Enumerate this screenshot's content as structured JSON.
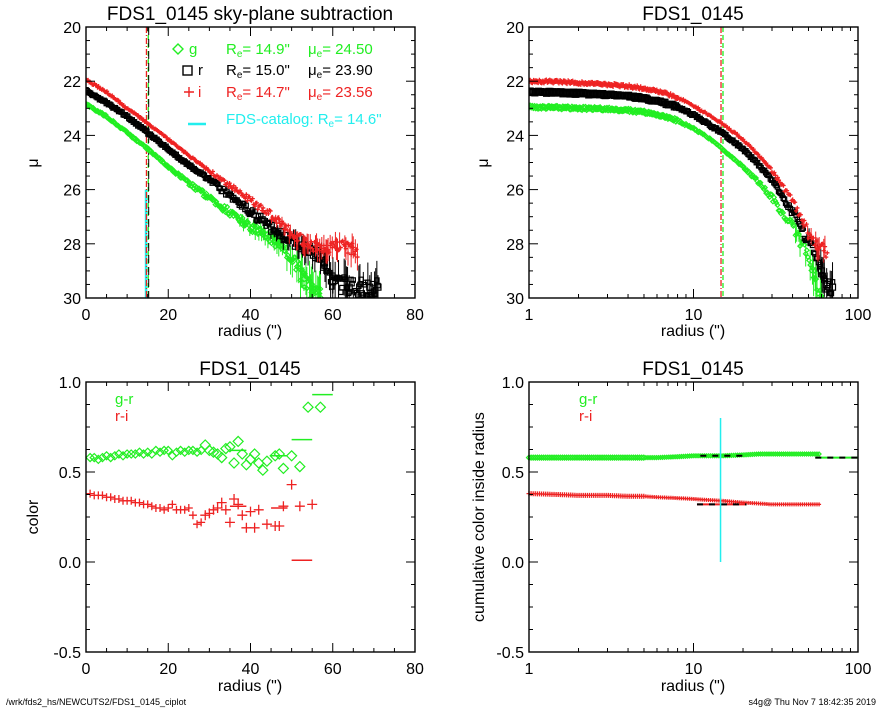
{
  "footer": {
    "path": "/wrk/fds2_hs/NEWCUTS2/FDS1_0145_ciplot",
    "stamp": "s4g@  Thu Nov  7 18:42:35 2019"
  },
  "colors": {
    "g": "#22ee22",
    "r": "#000000",
    "i": "#ee2222",
    "catalog": "#22eeee"
  },
  "chart_data": [
    {
      "id": "profile-linear",
      "type": "scatter",
      "title": "FDS1_0145 sky-plane subtraction",
      "xlabel": "radius (\")",
      "ylabel": "μ",
      "xscale": "linear",
      "xlim": [
        0,
        80
      ],
      "ylim": [
        30,
        20
      ],
      "xticks": [
        0,
        20,
        40,
        60,
        80
      ],
      "xtick_labels": [
        "0",
        "20",
        "40",
        "60",
        "80"
      ],
      "yticks": [
        20,
        22,
        24,
        26,
        28,
        30
      ],
      "ytick_labels": [
        "20",
        "22",
        "24",
        "26",
        "28",
        "30"
      ],
      "legend": [
        {
          "band": "g",
          "marker": "diamond",
          "re_label": "R",
          "re_sub": "e",
          "re_value": "=  14.9\"",
          "mu_label": "μ",
          "mu_sub": "e",
          "mu_value": "= 24.50"
        },
        {
          "band": "r",
          "marker": "square",
          "re_label": "R",
          "re_sub": "e",
          "re_value": "=  15.0\"",
          "mu_label": "μ",
          "mu_sub": "e",
          "mu_value": "= 23.90"
        },
        {
          "band": "i",
          "marker": "plus",
          "re_label": "R",
          "re_sub": "e",
          "re_value": "=  14.7\"",
          "mu_label": "μ",
          "mu_sub": "e",
          "mu_value": "= 23.56"
        }
      ],
      "catalog_legend": {
        "text": "FDS-catalog: R",
        "sub": "e",
        "value": "=  14.6\""
      },
      "re_lines": {
        "g": 14.9,
        "r": 15.0,
        "i": 14.7,
        "catalog": 14.6
      },
      "series": [
        {
          "name": "g",
          "marker": "diamond",
          "x": [
            0,
            5,
            10,
            15,
            20,
            25,
            30,
            35,
            40,
            45,
            50,
            53,
            55,
            57
          ],
          "y": [
            22.85,
            23.3,
            23.9,
            24.5,
            25.15,
            25.75,
            26.3,
            26.85,
            27.35,
            27.8,
            28.5,
            29.3,
            29.8,
            30.0
          ]
        },
        {
          "name": "r",
          "marker": "square",
          "x": [
            0,
            5,
            10,
            15,
            20,
            25,
            30,
            35,
            40,
            45,
            50,
            55,
            58,
            60,
            64,
            69,
            71
          ],
          "y": [
            22.35,
            22.8,
            23.3,
            23.9,
            24.5,
            25.1,
            25.65,
            26.2,
            26.8,
            27.4,
            27.9,
            28.3,
            28.7,
            29.4,
            29.6,
            29.6,
            29.6
          ]
        },
        {
          "name": "i",
          "marker": "plus",
          "x": [
            0,
            5,
            10,
            15,
            20,
            25,
            30,
            35,
            40,
            45,
            50,
            55,
            58,
            62,
            66
          ],
          "y": [
            21.95,
            22.4,
            23.0,
            23.56,
            24.15,
            24.75,
            25.3,
            25.85,
            26.4,
            26.95,
            27.6,
            28.1,
            28.2,
            28.0,
            28.3
          ]
        }
      ]
    },
    {
      "id": "profile-log",
      "type": "scatter",
      "title": "FDS1_0145",
      "xlabel": "radius (\")",
      "ylabel": "μ",
      "xscale": "log",
      "xlim": [
        1,
        100
      ],
      "ylim": [
        30,
        20
      ],
      "xticks": [
        1,
        10,
        100
      ],
      "xtick_labels": [
        "1",
        "10",
        "100"
      ],
      "yticks": [
        20,
        22,
        24,
        26,
        28,
        30
      ],
      "ytick_labels": [
        "20",
        "22",
        "24",
        "26",
        "28",
        "30"
      ],
      "re_lines": {
        "i": 14.7,
        "g": 14.9
      },
      "series": [
        {
          "name": "g",
          "marker": "diamond",
          "x": [
            1,
            1.5,
            2,
            3,
            4,
            5,
            6,
            8,
            10,
            12,
            15,
            20,
            25,
            30,
            40,
            50,
            55,
            60
          ],
          "y": [
            22.95,
            22.97,
            23.0,
            23.03,
            23.08,
            23.14,
            23.24,
            23.45,
            23.75,
            24.05,
            24.5,
            25.15,
            25.75,
            26.3,
            27.35,
            28.5,
            29.3,
            30.0
          ]
        },
        {
          "name": "r",
          "marker": "square",
          "x": [
            1,
            1.5,
            2,
            3,
            4,
            5,
            6,
            8,
            10,
            12,
            15,
            20,
            25,
            30,
            40,
            50,
            55,
            60,
            65,
            70
          ],
          "y": [
            22.4,
            22.42,
            22.45,
            22.5,
            22.55,
            22.63,
            22.73,
            22.95,
            23.25,
            23.55,
            23.9,
            24.5,
            25.1,
            25.65,
            26.8,
            27.9,
            28.5,
            29.0,
            29.5,
            29.6
          ]
        },
        {
          "name": "i",
          "marker": "plus",
          "x": [
            1,
            1.5,
            2,
            3,
            4,
            5,
            6,
            8,
            10,
            12,
            15,
            20,
            25,
            30,
            40,
            50,
            55,
            60,
            65
          ],
          "y": [
            22.0,
            22.02,
            22.06,
            22.12,
            22.18,
            22.26,
            22.36,
            22.6,
            22.9,
            23.2,
            23.56,
            24.15,
            24.75,
            25.3,
            26.4,
            27.6,
            28.0,
            28.1,
            28.3
          ]
        }
      ]
    },
    {
      "id": "color-profile",
      "type": "scatter",
      "title": "FDS1_0145",
      "xlabel": "radius (\")",
      "ylabel": "color",
      "xscale": "linear",
      "xlim": [
        0,
        80
      ],
      "ylim": [
        -0.5,
        1.0
      ],
      "xticks": [
        0,
        20,
        40,
        60,
        80
      ],
      "xtick_labels": [
        "0",
        "20",
        "40",
        "60",
        "80"
      ],
      "yticks": [
        -0.5,
        0.0,
        0.5,
        1.0
      ],
      "ytick_labels": [
        "-0.5",
        "0.0",
        "0.5",
        "1.0"
      ],
      "legend": [
        {
          "name": "g-r",
          "color_key": "g"
        },
        {
          "name": "r-i",
          "color_key": "i"
        }
      ],
      "series": [
        {
          "name": "g-r",
          "marker": "diamond",
          "x": [
            1,
            2,
            3,
            4,
            5,
            6,
            7,
            8,
            9,
            10,
            11,
            12,
            13,
            14,
            15,
            16,
            17,
            18,
            19,
            20,
            21,
            22,
            23,
            24,
            25,
            26,
            27,
            28,
            29,
            30,
            31,
            32,
            33,
            34,
            35,
            36,
            37,
            38,
            39,
            40,
            41,
            42,
            43,
            44,
            46,
            47,
            48,
            50,
            52,
            54,
            57
          ],
          "y": [
            0.58,
            0.58,
            0.57,
            0.58,
            0.59,
            0.58,
            0.59,
            0.6,
            0.59,
            0.6,
            0.6,
            0.6,
            0.61,
            0.6,
            0.61,
            0.6,
            0.62,
            0.61,
            0.62,
            0.62,
            0.59,
            0.61,
            0.62,
            0.61,
            0.62,
            0.62,
            0.61,
            0.62,
            0.65,
            0.62,
            0.61,
            0.6,
            0.58,
            0.63,
            0.64,
            0.55,
            0.67,
            0.6,
            0.54,
            0.57,
            0.6,
            0.55,
            0.51,
            0.56,
            0.59,
            0.6,
            0.52,
            0.59,
            0.53,
            0.86,
            0.86
          ]
        },
        {
          "name": "r-i",
          "marker": "plus",
          "x": [
            1,
            2,
            3,
            4,
            5,
            6,
            7,
            8,
            9,
            10,
            11,
            12,
            13,
            14,
            15,
            16,
            17,
            18,
            19,
            20,
            21,
            22,
            23,
            24,
            25,
            26,
            27,
            28,
            29,
            30,
            31,
            32,
            33,
            34,
            35,
            36,
            37,
            38,
            39,
            40,
            41,
            42,
            44,
            46,
            47,
            48,
            50,
            52,
            55
          ],
          "y": [
            0.38,
            0.37,
            0.37,
            0.37,
            0.36,
            0.36,
            0.35,
            0.35,
            0.34,
            0.34,
            0.34,
            0.33,
            0.33,
            0.32,
            0.32,
            0.31,
            0.3,
            0.3,
            0.29,
            0.3,
            0.32,
            0.29,
            0.29,
            0.29,
            0.3,
            0.26,
            0.21,
            0.22,
            0.26,
            0.27,
            0.29,
            0.3,
            0.33,
            0.29,
            0.22,
            0.35,
            0.32,
            0.26,
            0.19,
            0.28,
            0.19,
            0.29,
            0.21,
            0.2,
            0.2,
            0.31,
            0.43,
            0.31,
            0.32
          ]
        },
        {
          "name": "g-r-bin-mean",
          "style": "hline",
          "color_key": "g",
          "segments": [
            [
              35,
              39,
              0.62
            ],
            [
              45,
              49,
              0.59
            ],
            [
              50,
              55,
              0.68
            ],
            [
              55,
              60,
              0.93
            ]
          ]
        },
        {
          "name": "r-i-bin-mean",
          "style": "hline",
          "color_key": "i",
          "segments": [
            [
              35,
              39,
              0.31
            ],
            [
              45,
              49,
              0.3
            ],
            [
              50,
              55,
              0.01
            ]
          ]
        }
      ]
    },
    {
      "id": "cumulative-color",
      "type": "scatter",
      "title": "FDS1_0145",
      "xlabel": "radius (\")",
      "ylabel": "cumulative color inside radius",
      "xscale": "log",
      "xlim": [
        1,
        100
      ],
      "ylim": [
        -0.5,
        1.0
      ],
      "xticks": [
        1,
        10,
        100
      ],
      "xtick_labels": [
        "1",
        "10",
        "100"
      ],
      "yticks": [
        -0.5,
        0.0,
        0.5,
        1.0
      ],
      "ytick_labels": [
        "-0.5",
        "0.0",
        "0.5",
        "1.0"
      ],
      "legend": [
        {
          "name": "g-r",
          "color_key": "g"
        },
        {
          "name": "r-i",
          "color_key": "i"
        }
      ],
      "catalog_line": {
        "x": 14.6,
        "y_range": [
          0.0,
          0.8
        ]
      },
      "series": [
        {
          "name": "g-r",
          "marker": "diamond",
          "x": [
            1,
            1.5,
            2,
            3,
            4,
            5,
            6,
            8,
            10,
            12,
            15,
            20,
            25,
            30,
            40,
            50,
            58
          ],
          "y": [
            0.58,
            0.58,
            0.58,
            0.58,
            0.58,
            0.58,
            0.58,
            0.585,
            0.59,
            0.59,
            0.59,
            0.595,
            0.6,
            0.6,
            0.6,
            0.6,
            0.6
          ]
        },
        {
          "name": "r-i",
          "marker": "plus",
          "x": [
            1,
            1.5,
            2,
            3,
            4,
            5,
            6,
            8,
            10,
            12,
            15,
            20,
            25,
            30,
            40,
            50,
            58
          ],
          "y": [
            0.38,
            0.375,
            0.37,
            0.37,
            0.365,
            0.365,
            0.36,
            0.355,
            0.35,
            0.345,
            0.34,
            0.33,
            0.325,
            0.32,
            0.32,
            0.32,
            0.32
          ]
        },
        {
          "name": "g-r-aperture",
          "style": "dashed-hline",
          "color_key": "g",
          "segments": [
            [
              11,
              20,
              0.59
            ],
            [
              55,
              100,
              0.58
            ]
          ]
        },
        {
          "name": "r-i-aperture",
          "style": "dashed-hline",
          "color_key": "i",
          "segments": [
            [
              10.5,
              21,
              0.32
            ]
          ]
        }
      ]
    }
  ]
}
